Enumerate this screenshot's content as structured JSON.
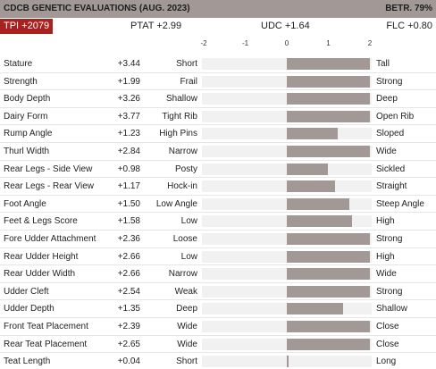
{
  "header": {
    "title": "CDCB GENETIC EVALUATIONS (AUG. 2023)",
    "reliability": "BETR. 79%"
  },
  "summary": {
    "tpi": "TPI +2079",
    "ptat": "PTAT +2.99",
    "udc": "UDC +1.64",
    "flc": "FLC +0.80"
  },
  "axis": {
    "min": -2,
    "max": 2,
    "ticks": [
      "-2",
      "-1",
      "0",
      "1",
      "2"
    ]
  },
  "colors": {
    "header_bg": "#a29996",
    "badge_bg": "#a9211e",
    "bar": "#a29996",
    "track": "#f1f1f1"
  },
  "traits": [
    {
      "name": "Stature",
      "value_text": "+3.44",
      "value": 3.44,
      "low": "Short",
      "high": "Tall"
    },
    {
      "name": "Strength",
      "value_text": "+1.99",
      "value": 1.99,
      "low": "Frail",
      "high": "Strong"
    },
    {
      "name": "Body Depth",
      "value_text": "+3.26",
      "value": 3.26,
      "low": "Shallow",
      "high": "Deep"
    },
    {
      "name": "Dairy Form",
      "value_text": "+3.77",
      "value": 3.77,
      "low": "Tight Rib",
      "high": "Open Rib"
    },
    {
      "name": "Rump Angle",
      "value_text": "+1.23",
      "value": 1.23,
      "low": "High Pins",
      "high": "Sloped"
    },
    {
      "name": "Thurl Width",
      "value_text": "+2.84",
      "value": 2.84,
      "low": "Narrow",
      "high": "Wide"
    },
    {
      "name": "Rear Legs - Side View",
      "value_text": "+0.98",
      "value": 0.98,
      "low": "Posty",
      "high": "Sickled"
    },
    {
      "name": "Rear Legs - Rear View",
      "value_text": "+1.17",
      "value": 1.17,
      "low": "Hock-in",
      "high": "Straight"
    },
    {
      "name": "Foot Angle",
      "value_text": "+1.50",
      "value": 1.5,
      "low": "Low Angle",
      "high": "Steep Angle"
    },
    {
      "name": "Feet & Legs Score",
      "value_text": "+1.58",
      "value": 1.58,
      "low": "Low",
      "high": "High"
    },
    {
      "name": "Fore Udder Attachment",
      "value_text": "+2.36",
      "value": 2.36,
      "low": "Loose",
      "high": "Strong"
    },
    {
      "name": "Rear Udder Height",
      "value_text": "+2.66",
      "value": 2.66,
      "low": "Low",
      "high": "High"
    },
    {
      "name": "Rear Udder Width",
      "value_text": "+2.66",
      "value": 2.66,
      "low": "Narrow",
      "high": "Wide"
    },
    {
      "name": "Udder Cleft",
      "value_text": "+2.54",
      "value": 2.54,
      "low": "Weak",
      "high": "Strong"
    },
    {
      "name": "Udder Depth",
      "value_text": "+1.35",
      "value": 1.35,
      "low": "Deep",
      "high": "Shallow"
    },
    {
      "name": "Front Teat Placement",
      "value_text": "+2.39",
      "value": 2.39,
      "low": "Wide",
      "high": "Close"
    },
    {
      "name": "Rear Teat Placement",
      "value_text": "+2.65",
      "value": 2.65,
      "low": "Wide",
      "high": "Close"
    },
    {
      "name": "Teat Length",
      "value_text": "+0.04",
      "value": 0.04,
      "low": "Short",
      "high": "Long"
    }
  ]
}
